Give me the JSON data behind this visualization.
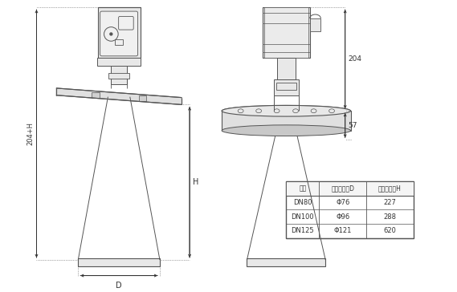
{
  "bg_color": "#ffffff",
  "line_color": "#555555",
  "fill_light": "#e8e8e8",
  "table_headers": [
    "法兰",
    "喇叭口直径D",
    "喇叭口高度H"
  ],
  "table_rows": [
    [
      "DN80",
      "Φ76",
      "227"
    ],
    [
      "DN100",
      "Φ96",
      "288"
    ],
    [
      "DN125",
      "Φ121",
      "620"
    ]
  ],
  "dim_204": "204",
  "dim_57": "57",
  "dim_H": "H",
  "dim_204H": "204+H",
  "dim_D": "D"
}
